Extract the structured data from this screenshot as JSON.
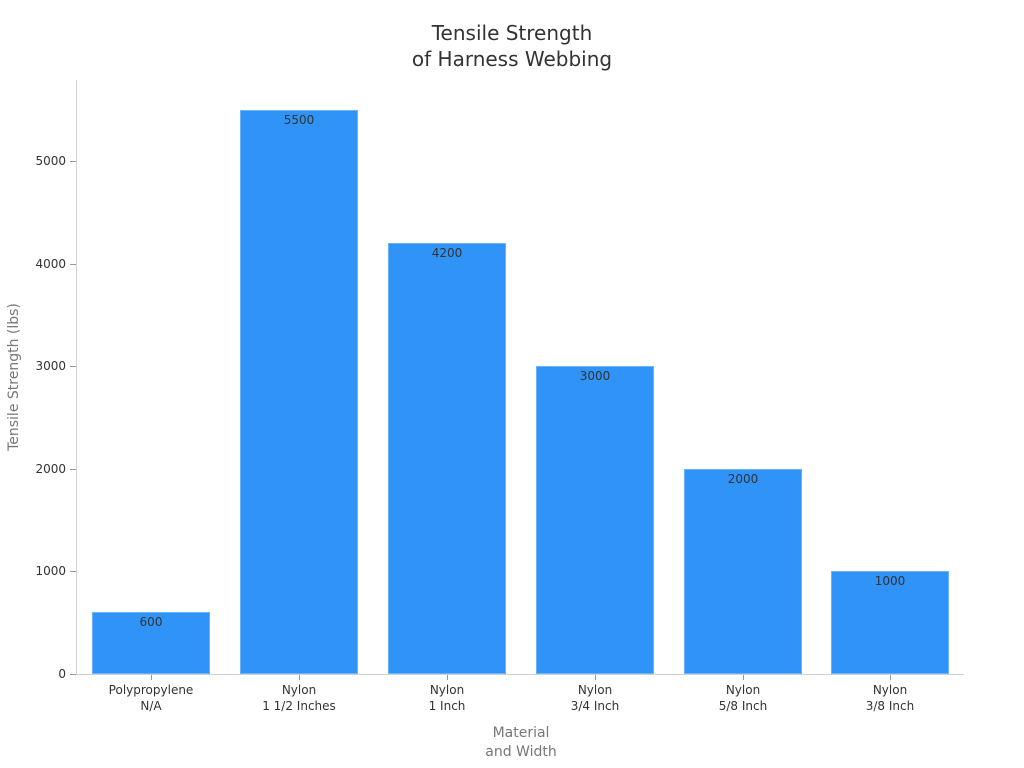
{
  "chart_data": {
    "type": "bar",
    "title": "Tensile Strength\nof Harness Webbing",
    "title_lines": [
      "Tensile Strength",
      "of Harness Webbing"
    ],
    "xlabel": "Material and Width",
    "xlabel_lines": [
      "Material",
      "and Width"
    ],
    "ylabel": "Tensile Strength (lbs)",
    "categories": [
      "Polypropylene N/A",
      "Nylon 1 1/2 Inches",
      "Nylon 1 Inch",
      "Nylon 3/4 Inch",
      "Nylon 5/8 Inch",
      "Nylon 3/8 Inch"
    ],
    "category_lines": [
      [
        "Polypropylene",
        "N/A"
      ],
      [
        "Nylon",
        "1 1/2 Inches"
      ],
      [
        "Nylon",
        "1 Inch"
      ],
      [
        "Nylon",
        "3/4 Inch"
      ],
      [
        "Nylon",
        "5/8 Inch"
      ],
      [
        "Nylon",
        "3/8 Inch"
      ]
    ],
    "values": [
      600,
      5500,
      4200,
      3000,
      2000,
      1000
    ],
    "data_labels": [
      "600",
      "5500",
      "4200",
      "3000",
      "2000",
      "1000"
    ],
    "yticks": [
      0,
      1000,
      2000,
      3000,
      4000,
      5000
    ],
    "ylim": [
      0,
      5780
    ],
    "grid": false,
    "legend": "none",
    "bar_color": "#2f93f8"
  }
}
